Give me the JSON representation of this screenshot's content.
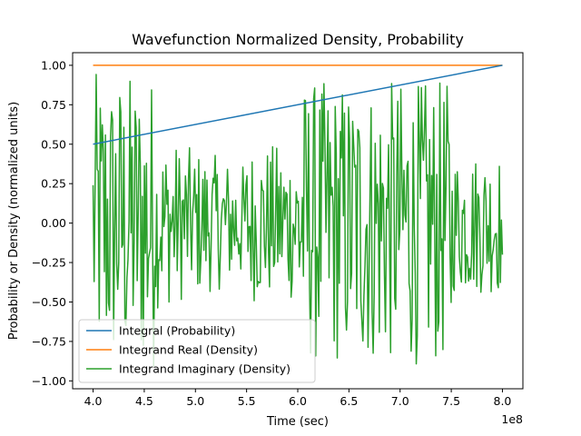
{
  "chart_data": {
    "type": "line",
    "title": "Wavefunction Normalized Density, Probability",
    "xlabel": "Time (sec)",
    "ylabel": "Probability or Density (normalized units)",
    "x_offset_label": "1e8",
    "xlim": [
      3.8,
      8.2
    ],
    "ylim": [
      -1.05,
      1.08
    ],
    "x_ticks": [
      "4.0",
      "4.5",
      "5.0",
      "5.5",
      "6.0",
      "6.5",
      "7.0",
      "7.5",
      "8.0"
    ],
    "y_ticks": [
      "−1.00",
      "−0.75",
      "−0.50",
      "−0.25",
      "0.00",
      "0.25",
      "0.50",
      "0.75",
      "1.00"
    ],
    "grid": false,
    "legend_position": "lower-left",
    "series": [
      {
        "name": "Integral (Probability)",
        "color": "#1f77b4",
        "x": [
          4.0,
          8.0
        ],
        "y": [
          0.5,
          1.0
        ]
      },
      {
        "name": "Integrand Real (Density)",
        "color": "#ff7f0e",
        "x": [
          4.0,
          8.0
        ],
        "y": [
          1.0,
          1.0
        ]
      },
      {
        "name": "Integrand Imaginary (Density)",
        "color": "#2ca02c",
        "x": [
          4.0,
          8.0
        ],
        "points": 400,
        "y_range": [
          -0.97,
          0.99
        ],
        "note_only_for_rendering": "dense oscillating signal"
      }
    ]
  }
}
